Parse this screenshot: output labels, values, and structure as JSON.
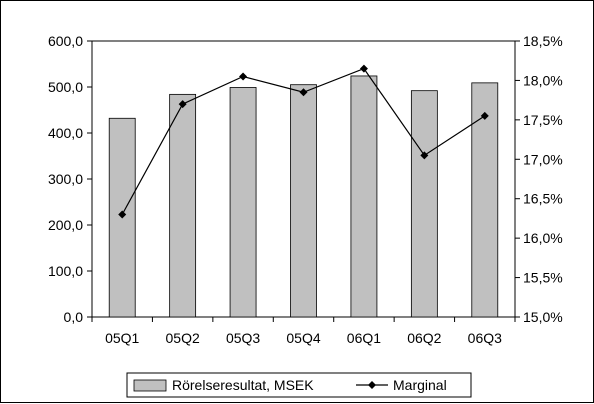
{
  "chart_data": {
    "type": "bar",
    "categories": [
      "05Q1",
      "05Q2",
      "05Q3",
      "05Q4",
      "06Q1",
      "06Q2",
      "06Q3"
    ],
    "series": [
      {
        "name": "Rörelseresultat, MSEK",
        "type": "bar",
        "axis": "left",
        "color": "#c0c0c0",
        "values": [
          432,
          484,
          499,
          505,
          524,
          492,
          509
        ]
      },
      {
        "name": "Marginal",
        "type": "line",
        "axis": "right",
        "color": "#000000",
        "marker": "diamond",
        "values": [
          16.3,
          17.7,
          18.05,
          17.85,
          18.15,
          17.05,
          17.55
        ]
      }
    ],
    "ylim": [
      0,
      600
    ],
    "y2lim": [
      15.0,
      18.5
    ],
    "yticks": [
      "0,0",
      "100,0",
      "200,0",
      "300,0",
      "400,0",
      "500,0",
      "600,0"
    ],
    "y2ticks": [
      "15,0%",
      "15,5%",
      "16,0%",
      "16,5%",
      "17,0%",
      "17,5%",
      "18,0%",
      "18,5%"
    ],
    "grid": false,
    "legend_position": "bottom"
  }
}
